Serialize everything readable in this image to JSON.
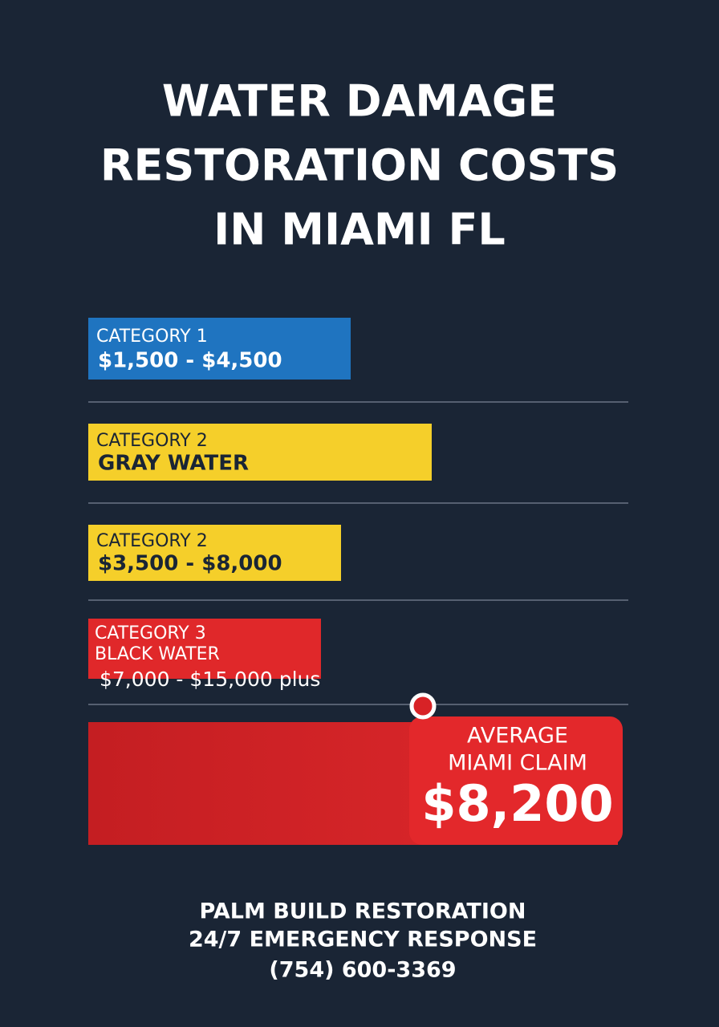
{
  "header": {
    "title_lines": [
      "WATER DAMAGE",
      "RESTORATION COSTS",
      "IN MIAMI FL"
    ]
  },
  "items": [
    {
      "lines": [
        "CATEGORY 1",
        "$1,500 - $4,500"
      ]
    },
    {
      "lines": [
        "CATEGORY 2",
        "GRAY WATER"
      ]
    },
    {
      "lines": [
        "CATEGORY 2",
        "$3,500 - $8,000"
      ]
    },
    {
      "lines": [
        "CATEGORY 3",
        "BLACK WATER",
        "$7,000 - $15,000 plus"
      ]
    }
  ],
  "callout": {
    "lines": [
      "AVERAGE",
      "MIAMI CLAIM"
    ],
    "amount": "$8,200"
  },
  "footer": {
    "lines": [
      "PALM BUILD RESTORATION",
      "24/7 EMERGENCY RESPONSE",
      "(754) 600-3369"
    ]
  }
}
